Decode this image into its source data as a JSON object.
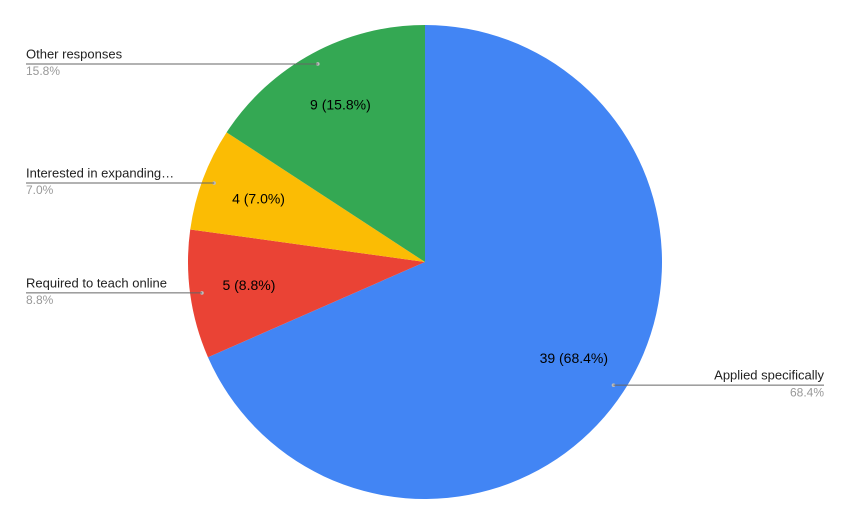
{
  "chart_data": {
    "type": "pie",
    "categories": [
      "Applied specifically",
      "Required to teach online",
      "Interested in expanding…",
      "Other responses"
    ],
    "values": [
      39,
      5,
      4,
      9
    ],
    "value_labels": [
      "39 (68.4%)",
      "5 (8.8%)",
      "4 (7.0%)",
      "9 (15.8%)"
    ],
    "percent_labels": [
      "68.4%",
      "8.8%",
      "7.0%",
      "15.8%"
    ],
    "colors": [
      "#4285f4",
      "#ea4335",
      "#fbbc04",
      "#34a853"
    ]
  }
}
